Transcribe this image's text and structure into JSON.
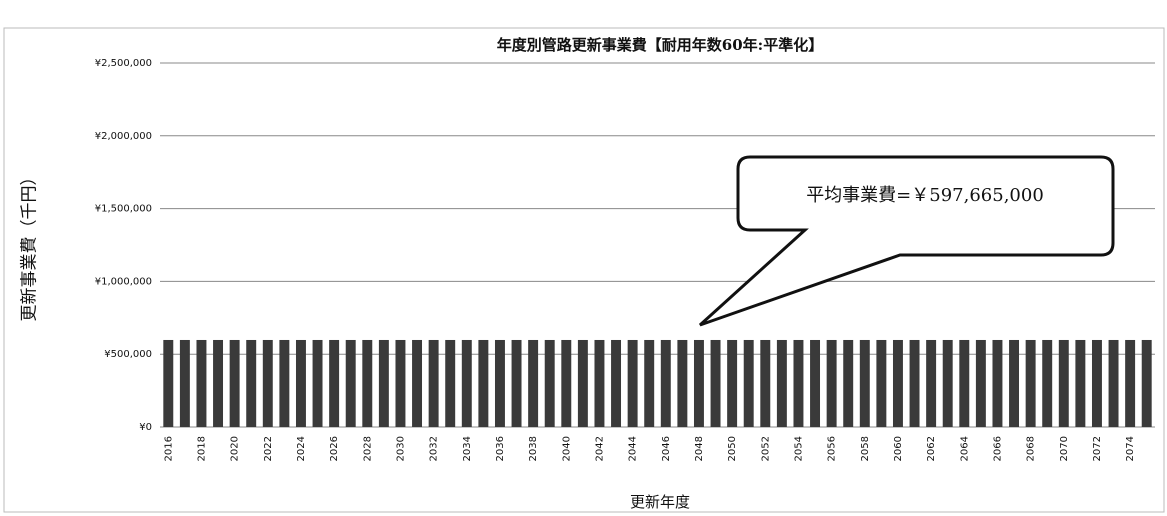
{
  "chart_data": {
    "type": "bar",
    "title": "年度別管路更新事業費【耐用年数60年:平準化】",
    "y_label": "更新事業費（千円）",
    "x_label": "更新年度",
    "annotation": "平均事業費=￥597,665,000",
    "categories": [
      "2016",
      null,
      "2018",
      null,
      "2020",
      null,
      "2022",
      null,
      "2024",
      null,
      "2026",
      null,
      "2028",
      null,
      "2030",
      null,
      "2032",
      null,
      "2034",
      null,
      "2036",
      null,
      "2038",
      null,
      "2040",
      null,
      "2042",
      null,
      "2044",
      null,
      "2046",
      null,
      "2048",
      null,
      "2050",
      null,
      "2052",
      null,
      "2054",
      null,
      "2056",
      null,
      "2058",
      null,
      "2060",
      null,
      "2062",
      null,
      "2064",
      null,
      "2066",
      null,
      "2068",
      null,
      "2070",
      null,
      "2072",
      null,
      "2074",
      null
    ],
    "values": [
      597665,
      597665,
      597665,
      597665,
      597665,
      597665,
      597665,
      597665,
      597665,
      597665,
      597665,
      597665,
      597665,
      597665,
      597665,
      597665,
      597665,
      597665,
      597665,
      597665,
      597665,
      597665,
      597665,
      597665,
      597665,
      597665,
      597665,
      597665,
      597665,
      597665,
      597665,
      597665,
      597665,
      597665,
      597665,
      597665,
      597665,
      597665,
      597665,
      597665,
      597665,
      597665,
      597665,
      597665,
      597665,
      597665,
      597665,
      597665,
      597665,
      597665,
      597665,
      597665,
      597665,
      597665,
      597665,
      597665,
      597665,
      597665,
      597665,
      597665
    ],
    "color": "#3a3a3a",
    "ylim": [
      0,
      2500000
    ],
    "yticks": [
      {
        "value": 0,
        "label": "¥0"
      },
      {
        "value": 500000,
        "label": "¥500,000"
      },
      {
        "value": 1000000,
        "label": "¥1,000,000"
      },
      {
        "value": 1500000,
        "label": "¥1,500,000"
      },
      {
        "value": 2000000,
        "label": "¥2,000,000"
      },
      {
        "value": 2500000,
        "label": "¥2,500,000"
      }
    ],
    "grid": true
  }
}
